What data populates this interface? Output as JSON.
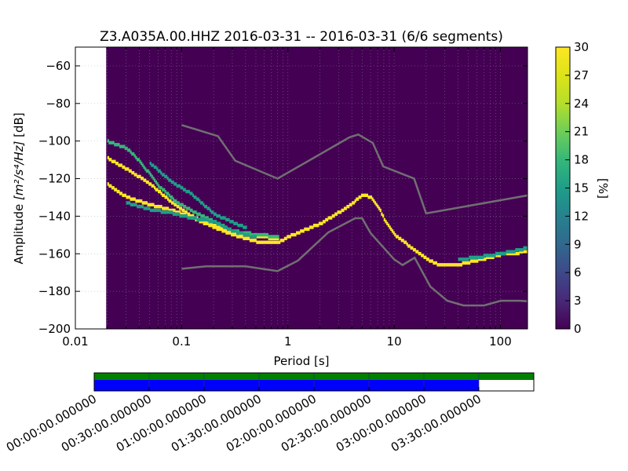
{
  "chart_data": [
    {
      "type": "heatmap",
      "title": "Z3.A035A.00.HHZ   2016-03-31 -- 2016-03-31  (6/6 segments)",
      "xlabel": "Period [s]",
      "ylabel_prefix": "Amplitude ",
      "ylabel_units": "[m²/s⁴/Hz]",
      "ylabel_suffix": " [dB]",
      "xscale": "log",
      "xlim": [
        0.01,
        180
      ],
      "ylim": [
        -200,
        -50
      ],
      "xticks": [
        0.01,
        0.1,
        1,
        10,
        100
      ],
      "xtick_labels": [
        "0.01",
        "0.1",
        "1",
        "10",
        "100"
      ],
      "yticks": [
        -200,
        -180,
        -160,
        -140,
        -120,
        -100,
        -80,
        -60
      ],
      "ytick_labels": [
        "−200",
        "−180",
        "−160",
        "−140",
        "−120",
        "−100",
        "−80",
        "−60"
      ],
      "data_start_period": 0.0195,
      "background_color": "#440154",
      "colormap": "viridis",
      "colorbar": {
        "label": "[%]",
        "range": [
          0,
          30
        ],
        "ticks": [
          0,
          3,
          6,
          9,
          12,
          15,
          18,
          21,
          24,
          27,
          30
        ],
        "tick_labels": [
          "0",
          "3",
          "6",
          "9",
          "12",
          "15",
          "18",
          "21",
          "24",
          "27",
          "30"
        ]
      },
      "noise_model_color": "#707070",
      "high_noise_model": {
        "period": [
          0.1,
          0.22,
          0.32,
          0.8,
          3.8,
          4.6,
          6.3,
          7.9,
          15.4,
          20,
          354
        ],
        "db": [
          -91.5,
          -97.4,
          -110.5,
          -120,
          -98,
          -96.5,
          -101,
          -113.5,
          -120,
          -138.5,
          -126
        ]
      },
      "low_noise_model": {
        "period": [
          0.1,
          0.17,
          0.4,
          0.8,
          1.24,
          2.4,
          4.3,
          5,
          6,
          10,
          12,
          15.6,
          21.9,
          31.6,
          45,
          70,
          101,
          154,
          178
        ],
        "db": [
          -168,
          -166.7,
          -166.7,
          -169.2,
          -163.7,
          -148.6,
          -141.1,
          -141.1,
          -149,
          -163,
          -166,
          -162.1,
          -177.5,
          -185,
          -187.5,
          -187.5,
          -185,
          -185,
          -185.3
        ]
      },
      "psd_series": [
        {
          "period": [
            0.02,
            0.03,
            0.05,
            0.08,
            0.12,
            0.2,
            0.3,
            0.5,
            0.8,
            1.0,
            2.0,
            3.0,
            4.0,
            5.0,
            6.0,
            7.0,
            8.0,
            10,
            13,
            16,
            20,
            25,
            30,
            40,
            60,
            100,
            180
          ],
          "db": [
            -123.5,
            -130,
            -134,
            -137,
            -140.5,
            -146,
            -150,
            -153.5,
            -154,
            -151,
            -144,
            -138,
            -133,
            -129,
            -130,
            -135,
            -142,
            -150,
            -155,
            -159,
            -163,
            -165.5,
            -166.5,
            -166,
            -163.5,
            -160.5,
            -159
          ],
          "percent": 30
        },
        {
          "period": [
            0.02,
            0.03,
            0.05,
            0.08,
            0.12,
            0.2,
            0.3,
            0.5,
            0.8
          ],
          "db": [
            -109.5,
            -115,
            -123,
            -133,
            -140,
            -145,
            -149,
            -151,
            -152
          ],
          "percent": 30
        },
        {
          "period": [
            0.02,
            0.03,
            0.04,
            0.06,
            0.09,
            0.13,
            0.2,
            0.3,
            0.5,
            0.8
          ],
          "db": [
            -100.5,
            -104,
            -111,
            -124,
            -133,
            -138,
            -143,
            -148,
            -150,
            -151
          ],
          "percent": 18
        },
        {
          "period": [
            0.03,
            0.05,
            0.08,
            0.12,
            0.2,
            0.3,
            0.5
          ],
          "db": [
            -133,
            -136.5,
            -138.5,
            -141,
            -143,
            -148,
            -151.5
          ],
          "percent": 15
        },
        {
          "period": [
            0.05,
            0.08,
            0.12,
            0.2,
            0.4
          ],
          "db": [
            -112,
            -122,
            -128,
            -139,
            -146.5
          ],
          "percent": 16
        },
        {
          "period": [
            40,
            60,
            100,
            180
          ],
          "db": [
            -163,
            -162,
            -160,
            -157
          ],
          "percent": 16
        }
      ]
    },
    {
      "type": "bar",
      "orientation": "horizontal",
      "description_axis": "time coverage",
      "xlim": [
        "00:00:00",
        "04:00:00"
      ],
      "series": [
        {
          "color": "#008000",
          "start": "00:00:00.000000",
          "end": "04:00:00.000000"
        },
        {
          "color": "#0000ff",
          "start": "00:00:00.000000",
          "end": "03:30:00.000000"
        }
      ],
      "gridline_colors": [
        "#2b2b6e",
        "#7a7a7a"
      ],
      "tick_labels": [
        "00:00:00.000000",
        "00:30:00.000000",
        "01:00:00.000000",
        "01:30:00.000000",
        "02:00:00.000000",
        "02:30:00.000000",
        "03:00:00.000000",
        "03:30:00.000000"
      ]
    }
  ]
}
